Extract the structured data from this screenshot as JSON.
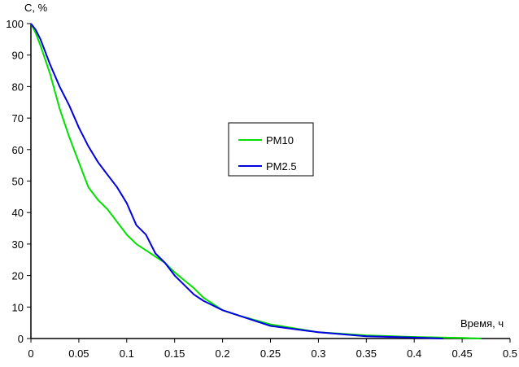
{
  "chart_data": {
    "type": "line",
    "title": "",
    "xlabel": "Время, ч",
    "ylabel": "C, %",
    "xlim": [
      0,
      0.5
    ],
    "ylim": [
      0,
      100
    ],
    "xticks": [
      "0",
      "0.05",
      "0.1",
      "0.15",
      "0.2",
      "0.25",
      "0.3",
      "0.35",
      "0.4",
      "0.45",
      "0.5"
    ],
    "yticks": [
      "0",
      "10",
      "20",
      "30",
      "40",
      "50",
      "60",
      "70",
      "80",
      "90",
      "100"
    ],
    "grid": false,
    "legend_position": "center",
    "series": [
      {
        "name": "PM10",
        "color": "#00e000",
        "x": [
          0,
          0.005,
          0.01,
          0.02,
          0.03,
          0.04,
          0.05,
          0.06,
          0.07,
          0.08,
          0.09,
          0.1,
          0.11,
          0.12,
          0.13,
          0.14,
          0.15,
          0.16,
          0.17,
          0.18,
          0.2,
          0.22,
          0.25,
          0.3,
          0.35,
          0.4,
          0.45,
          0.47
        ],
        "y": [
          100,
          97,
          93,
          84,
          73,
          64,
          56,
          48,
          44,
          41,
          37,
          33,
          30,
          28,
          26,
          24,
          21,
          18.5,
          16,
          13,
          9,
          7,
          4.5,
          2,
          1,
          0.5,
          0.2,
          0
        ]
      },
      {
        "name": "PM2.5",
        "color": "#0000e0",
        "x": [
          0,
          0.005,
          0.01,
          0.02,
          0.03,
          0.04,
          0.05,
          0.06,
          0.07,
          0.08,
          0.09,
          0.1,
          0.11,
          0.12,
          0.13,
          0.14,
          0.15,
          0.16,
          0.17,
          0.18,
          0.2,
          0.22,
          0.25,
          0.3,
          0.35,
          0.4,
          0.43
        ],
        "y": [
          100,
          98,
          95,
          87,
          80,
          74,
          67,
          61,
          56,
          52,
          48,
          43,
          36,
          33,
          27,
          24,
          20,
          17,
          14,
          12,
          9,
          7,
          4,
          2,
          0.7,
          0.3,
          0
        ]
      }
    ]
  }
}
